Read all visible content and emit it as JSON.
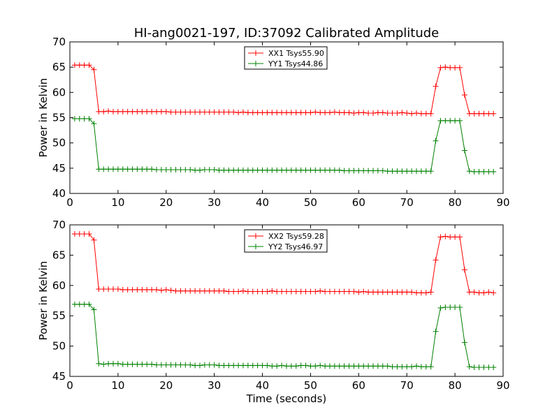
{
  "chart_data": [
    {
      "type": "line",
      "title": "HI-ang0021-197, ID:37092 Calibrated Amplitude",
      "xlabel": "",
      "ylabel": "Power in Kelvin",
      "xlim": [
        0,
        90
      ],
      "ylim": [
        40,
        70
      ],
      "xticks": [
        0,
        10,
        20,
        30,
        40,
        50,
        60,
        70,
        80,
        90
      ],
      "yticks": [
        40,
        45,
        50,
        55,
        60,
        65,
        70
      ],
      "grid": false,
      "legend": "top-center",
      "x": [
        1,
        2,
        3,
        4,
        5,
        6,
        7,
        8,
        9,
        10,
        11,
        12,
        13,
        14,
        15,
        16,
        17,
        18,
        19,
        20,
        21,
        22,
        23,
        24,
        25,
        26,
        27,
        28,
        29,
        30,
        31,
        32,
        33,
        34,
        35,
        36,
        37,
        38,
        39,
        40,
        41,
        42,
        43,
        44,
        45,
        46,
        47,
        48,
        49,
        50,
        51,
        52,
        53,
        54,
        55,
        56,
        57,
        58,
        59,
        60,
        61,
        62,
        63,
        64,
        65,
        66,
        67,
        68,
        69,
        70,
        71,
        72,
        73,
        74,
        75,
        76,
        77,
        78,
        79,
        80,
        81,
        82,
        83,
        84,
        85,
        86,
        87,
        88
      ],
      "series": [
        {
          "name": "XX1 Tsys55.90",
          "color": "#ff0000",
          "values": [
            65.4,
            65.4,
            65.4,
            65.4,
            64.5,
            56.2,
            56.2,
            56.3,
            56.2,
            56.2,
            56.2,
            56.2,
            56.2,
            56.2,
            56.2,
            56.2,
            56.2,
            56.2,
            56.2,
            56.2,
            56.1,
            56.1,
            56.1,
            56.1,
            56.1,
            56.1,
            56.1,
            56.1,
            56.1,
            56.1,
            56.1,
            56.1,
            56.1,
            56.1,
            56.0,
            56.1,
            56.0,
            56.0,
            56.0,
            56.0,
            56.0,
            56.0,
            56.0,
            56.0,
            56.0,
            56.0,
            56.0,
            56.0,
            56.0,
            56.0,
            56.1,
            56.0,
            56.0,
            56.0,
            56.1,
            56.0,
            56.0,
            56.0,
            55.9,
            56.0,
            56.0,
            55.9,
            55.9,
            56.0,
            56.0,
            55.9,
            55.9,
            55.9,
            56.0,
            55.9,
            55.8,
            55.9,
            55.8,
            55.8,
            55.8,
            61.2,
            64.9,
            65.0,
            64.9,
            64.9,
            64.9,
            59.5,
            55.8,
            55.8,
            55.8,
            55.8,
            55.8,
            55.8
          ]
        },
        {
          "name": "YY1 Tsys44.86",
          "color": "#008000",
          "values": [
            54.8,
            54.8,
            54.8,
            54.8,
            53.8,
            44.8,
            44.8,
            44.8,
            44.8,
            44.8,
            44.8,
            44.8,
            44.8,
            44.8,
            44.8,
            44.8,
            44.8,
            44.7,
            44.7,
            44.7,
            44.7,
            44.7,
            44.7,
            44.7,
            44.7,
            44.6,
            44.6,
            44.7,
            44.7,
            44.7,
            44.6,
            44.6,
            44.6,
            44.6,
            44.6,
            44.6,
            44.6,
            44.6,
            44.6,
            44.6,
            44.6,
            44.6,
            44.6,
            44.6,
            44.6,
            44.6,
            44.6,
            44.6,
            44.6,
            44.6,
            44.6,
            44.6,
            44.6,
            44.6,
            44.6,
            44.6,
            44.5,
            44.5,
            44.5,
            44.5,
            44.5,
            44.5,
            44.5,
            44.5,
            44.5,
            44.4,
            44.4,
            44.4,
            44.4,
            44.4,
            44.4,
            44.4,
            44.4,
            44.4,
            44.4,
            50.4,
            54.4,
            54.4,
            54.4,
            54.4,
            54.4,
            48.5,
            44.4,
            44.3,
            44.3,
            44.3,
            44.3,
            44.3
          ]
        }
      ]
    },
    {
      "type": "line",
      "title": "",
      "xlabel": "Time (seconds)",
      "ylabel": "Power in Kelvin",
      "xlim": [
        0,
        90
      ],
      "ylim": [
        45,
        70
      ],
      "xticks": [
        0,
        10,
        20,
        30,
        40,
        50,
        60,
        70,
        80,
        90
      ],
      "yticks": [
        45,
        50,
        55,
        60,
        65,
        70
      ],
      "grid": false,
      "legend": "top-center",
      "x": [
        1,
        2,
        3,
        4,
        5,
        6,
        7,
        8,
        9,
        10,
        11,
        12,
        13,
        14,
        15,
        16,
        17,
        18,
        19,
        20,
        21,
        22,
        23,
        24,
        25,
        26,
        27,
        28,
        29,
        30,
        31,
        32,
        33,
        34,
        35,
        36,
        37,
        38,
        39,
        40,
        41,
        42,
        43,
        44,
        45,
        46,
        47,
        48,
        49,
        50,
        51,
        52,
        53,
        54,
        55,
        56,
        57,
        58,
        59,
        60,
        61,
        62,
        63,
        64,
        65,
        66,
        67,
        68,
        69,
        70,
        71,
        72,
        73,
        74,
        75,
        76,
        77,
        78,
        79,
        80,
        81,
        82,
        83,
        84,
        85,
        86,
        87,
        88
      ],
      "series": [
        {
          "name": "XX2 Tsys59.28",
          "color": "#ff0000",
          "values": [
            68.5,
            68.5,
            68.5,
            68.5,
            67.5,
            59.4,
            59.4,
            59.4,
            59.4,
            59.4,
            59.3,
            59.3,
            59.3,
            59.3,
            59.3,
            59.3,
            59.3,
            59.3,
            59.2,
            59.3,
            59.2,
            59.1,
            59.1,
            59.1,
            59.1,
            59.1,
            59.1,
            59.1,
            59.1,
            59.1,
            59.1,
            59.1,
            59.0,
            59.0,
            59.0,
            59.1,
            59.0,
            59.0,
            59.0,
            59.0,
            59.0,
            59.1,
            59.0,
            59.0,
            59.0,
            59.0,
            59.0,
            59.0,
            59.0,
            59.0,
            59.0,
            59.1,
            59.0,
            59.0,
            59.0,
            59.0,
            59.0,
            59.0,
            59.0,
            58.9,
            59.0,
            58.9,
            58.9,
            58.9,
            58.9,
            58.9,
            58.9,
            58.9,
            58.9,
            58.9,
            58.9,
            58.8,
            58.8,
            58.8,
            58.9,
            64.2,
            68.0,
            68.1,
            68.0,
            68.0,
            68.0,
            62.6,
            58.9,
            58.9,
            58.8,
            58.8,
            58.9,
            58.8
          ]
        },
        {
          "name": "YY2 Tsys46.97",
          "color": "#008000",
          "values": [
            56.9,
            56.9,
            56.9,
            56.9,
            56.0,
            47.1,
            47.0,
            47.1,
            47.1,
            47.1,
            47.0,
            47.0,
            47.0,
            47.0,
            47.0,
            47.0,
            47.0,
            46.9,
            46.9,
            46.9,
            46.9,
            46.9,
            46.9,
            46.9,
            46.9,
            46.8,
            46.8,
            46.9,
            46.9,
            46.9,
            46.8,
            46.8,
            46.8,
            46.8,
            46.8,
            46.8,
            46.8,
            46.8,
            46.8,
            46.8,
            46.8,
            46.7,
            46.7,
            46.8,
            46.7,
            46.7,
            46.7,
            46.8,
            46.8,
            46.7,
            46.7,
            46.8,
            46.7,
            46.7,
            46.7,
            46.7,
            46.7,
            46.7,
            46.7,
            46.7,
            46.7,
            46.7,
            46.7,
            46.7,
            46.7,
            46.7,
            46.6,
            46.6,
            46.6,
            46.6,
            46.6,
            46.7,
            46.6,
            46.6,
            46.6,
            52.4,
            56.3,
            56.4,
            56.4,
            56.4,
            56.4,
            50.6,
            46.6,
            46.5,
            46.5,
            46.5,
            46.5,
            46.5
          ]
        }
      ]
    }
  ]
}
